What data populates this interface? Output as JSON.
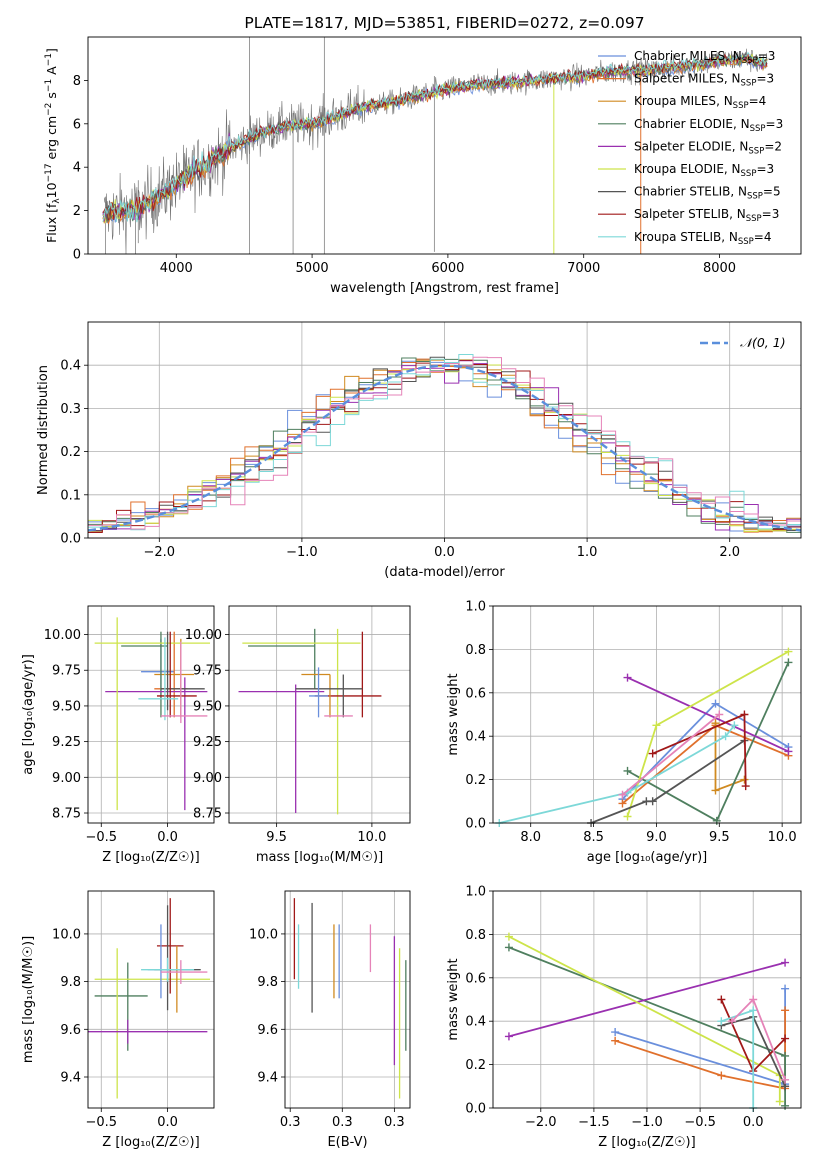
{
  "colors": {
    "chabrier_miles": "#6a8fdc",
    "salpeter_miles": "#e0702c",
    "kroupa_miles": "#d08a20",
    "chabrier_elodie": "#4f7f5f",
    "salpeter_elodie": "#9a30b0",
    "kroupa_elodie": "#cde44a",
    "chabrier_stelib": "#555555",
    "salpeter_stelib": "#a01818",
    "kroupa_stelib": "#7dd8d8",
    "pink": "#e583b8",
    "observed": "#707070",
    "gaussian": "#5a8fdc",
    "grid": "#b0b0b0"
  },
  "chart_data": [
    {
      "id": "spectrum",
      "type": "line",
      "title": "PLATE=1817, MJD=53851, FIBERID=0272, z=0.097",
      "xlabel": "wavelength [Angstrom, rest frame]",
      "xlim": [
        3350,
        8600
      ],
      "ylim": [
        0,
        10
      ],
      "xticks": [
        4000,
        5000,
        6000,
        7000,
        8000
      ],
      "yticks": [
        0,
        2,
        4,
        6,
        8
      ],
      "grid": false,
      "legend_position": "top-right",
      "series": [
        {
          "color_key": "chabrier_miles",
          "name": "Chabrier MILES",
          "nssp": "3"
        },
        {
          "color_key": "salpeter_miles",
          "name": "Salpeter MILES",
          "nssp": "3"
        },
        {
          "color_key": "kroupa_miles",
          "name": "Kroupa MILES",
          "nssp": "4"
        },
        {
          "color_key": "chabrier_elodie",
          "name": "Chabrier ELODIE",
          "nssp": "3"
        },
        {
          "color_key": "salpeter_elodie",
          "name": "Salpeter ELODIE",
          "nssp": "2"
        },
        {
          "color_key": "kroupa_elodie",
          "name": "Kroupa ELODIE",
          "nssp": "3"
        },
        {
          "color_key": "chabrier_stelib",
          "name": "Chabrier STELIB",
          "nssp": "5"
        },
        {
          "color_key": "salpeter_stelib",
          "name": "Salpeter STELIB",
          "nssp": "3"
        },
        {
          "color_key": "kroupa_stelib",
          "name": "Kroupa STELIB",
          "nssp": "4"
        }
      ],
      "model_continuum": {
        "x": [
          3450,
          3600,
          3700,
          3850,
          4000,
          4200,
          4400,
          4600,
          4800,
          5000,
          5200,
          5400,
          5600,
          5800,
          6000,
          6200,
          6500,
          6800,
          7000,
          7200,
          7500,
          7800,
          8000,
          8200,
          8350
        ],
        "y": [
          1.8,
          2.0,
          2.0,
          2.6,
          3.2,
          4.1,
          4.9,
          5.5,
          5.9,
          6.0,
          6.4,
          6.8,
          7.0,
          7.3,
          7.6,
          7.8,
          7.9,
          8.1,
          8.2,
          8.4,
          8.5,
          8.7,
          8.9,
          9.0,
          8.7
        ]
      },
      "observed_noise_spikes": [
        {
          "x": 3480,
          "y1": 0,
          "y2": 2.4
        },
        {
          "x": 3700,
          "y1": 0,
          "y2": 2.8
        },
        {
          "x": 3720,
          "y1": 0.5,
          "y2": 3.4
        },
        {
          "x": 4540,
          "y1": 0,
          "y2": 10
        },
        {
          "x": 4860,
          "y1": 0,
          "y2": 6.5
        },
        {
          "x": 5090,
          "y1": 0,
          "y2": 10
        },
        {
          "x": 5900,
          "y1": 0.1,
          "y2": 8.2
        }
      ],
      "line_features": [
        {
          "x": 6780,
          "y1": 0,
          "y2": 7.8,
          "color_key": "kroupa_elodie"
        },
        {
          "x": 7420,
          "y1": 0,
          "y2": 8.4,
          "color_key": "salpeter_miles"
        }
      ]
    },
    {
      "id": "residuals",
      "type": "histogram",
      "xlabel": "(data-model)/error",
      "ylabel": "Normed distribution",
      "xlim": [
        -2.5,
        2.5
      ],
      "ylim": [
        0,
        0.5
      ],
      "xticks": [
        -2,
        -1,
        0,
        1,
        2
      ],
      "yticks": [
        0.0,
        0.1,
        0.2,
        0.3,
        0.4
      ],
      "grid": true,
      "legend_position": "top-right",
      "legend": [
        "𝒩(0, 1)"
      ],
      "bin_width": 0.1,
      "bin_start": -2.5
    },
    {
      "id": "age-metallicity",
      "type": "errorbar",
      "xlabel": "Z [log₁₀(Z/Z☉)]",
      "ylabel": "age  [log₁₀(age/yr)]",
      "xlim": [
        -0.6,
        0.35
      ],
      "ylim": [
        8.68,
        10.2
      ],
      "xticks": [
        -0.5,
        0.0
      ],
      "yticks": [
        8.75,
        9.0,
        9.25,
        9.5,
        9.75,
        10.0
      ],
      "grid": true,
      "points": [
        {
          "color_key": "chabrier_miles",
          "x": -0.05,
          "xerr": [
            0.15,
            0.1
          ],
          "y": 9.74,
          "yerr": [
            0.2,
            0.23
          ]
        },
        {
          "color_key": "salpeter_miles",
          "x": 0.05,
          "xerr": [
            0.15,
            0.1
          ],
          "y": 9.62,
          "yerr": [
            0.2,
            0.4
          ]
        },
        {
          "color_key": "kroupa_miles",
          "x": 0.1,
          "xerr": [
            0.2,
            0.1
          ],
          "y": 9.72,
          "yerr": [
            0.3,
            0.25
          ]
        },
        {
          "color_key": "chabrier_elodie",
          "x": -0.05,
          "xerr": [
            0.3,
            0.05
          ],
          "y": 9.92,
          "yerr": [
            0.5,
            0.1
          ]
        },
        {
          "color_key": "salpeter_elodie",
          "x": 0.13,
          "xerr": [
            0.6,
            0.17
          ],
          "y": 9.6,
          "yerr": [
            0.83,
            0.1
          ]
        },
        {
          "color_key": "kroupa_elodie",
          "x": -0.38,
          "xerr": [
            0.17,
            0.7
          ],
          "y": 9.94,
          "yerr": [
            1.17,
            0.18
          ]
        },
        {
          "color_key": "chabrier_stelib",
          "x": 0.0,
          "xerr": [
            0.05,
            0.28
          ],
          "y": 9.62,
          "yerr": [
            0.15,
            0.4
          ]
        },
        {
          "color_key": "salpeter_stelib",
          "x": 0.02,
          "xerr": [
            0.1,
            0.2
          ],
          "y": 9.57,
          "yerr": [
            0.15,
            0.45
          ]
        },
        {
          "color_key": "kroupa_stelib",
          "x": -0.02,
          "xerr": [
            0.2,
            0.1
          ],
          "y": 9.55,
          "yerr": [
            0.15,
            0.43
          ]
        },
        {
          "color_key": "pink",
          "x": 0.1,
          "xerr": [
            0.15,
            0.2
          ],
          "y": 9.43,
          "yerr": [
            0.05,
            0.52
          ]
        }
      ]
    },
    {
      "id": "age-mass",
      "type": "errorbar",
      "xlabel": "mass [log₁₀(M/M☉)]",
      "xlim": [
        9.25,
        10.2
      ],
      "ylim": [
        8.68,
        10.2
      ],
      "xticks": [
        9.5,
        10.0
      ],
      "yticks": [
        8.75,
        9.0,
        9.25,
        9.5,
        9.75,
        10.0
      ],
      "grid": true,
      "points": [
        {
          "color_key": "chabrier_elodie",
          "x": 9.7,
          "xerr": [
            0.35,
            0.0
          ],
          "y": 9.92,
          "yerr": [
            0.3,
            0.12
          ]
        },
        {
          "color_key": "kroupa_elodie",
          "x": 9.82,
          "xerr": [
            0.5,
            0.12
          ],
          "y": 9.94,
          "yerr": [
            1.2,
            0.1
          ]
        },
        {
          "color_key": "salpeter_elodie",
          "x": 9.6,
          "xerr": [
            0.3,
            0.15
          ],
          "y": 9.6,
          "yerr": [
            0.85,
            0.05
          ]
        },
        {
          "color_key": "salpeter_stelib",
          "x": 9.95,
          "xerr": [
            0.25,
            0.1
          ],
          "y": 9.57,
          "yerr": [
            0.15,
            0.45
          ]
        },
        {
          "color_key": "kroupa_miles",
          "x": 9.78,
          "xerr": [
            0.15,
            0.0
          ],
          "y": 9.72,
          "yerr": [
            0.3,
            0.0
          ]
        },
        {
          "color_key": "chabrier_stelib",
          "x": 9.85,
          "xerr": [
            0.25,
            0.1
          ],
          "y": 9.62,
          "yerr": [
            0.2,
            0.1
          ]
        },
        {
          "color_key": "pink",
          "x": 9.9,
          "xerr": [
            0.15,
            0.0
          ],
          "y": 9.43,
          "yerr": [
            0.0,
            0.0
          ]
        },
        {
          "color_key": "chabrier_miles",
          "x": 9.72,
          "xerr": [
            0.05,
            0.05
          ],
          "y": 9.57,
          "yerr": [
            0.15,
            0.2
          ]
        }
      ]
    },
    {
      "id": "weight-age",
      "type": "line",
      "xlabel": "age  [log₁₀(age/yr)]",
      "ylabel": "mass weight",
      "xlim": [
        7.7,
        10.15
      ],
      "ylim": [
        0,
        1
      ],
      "xticks": [
        8.0,
        8.5,
        9.0,
        9.5,
        10.0
      ],
      "yticks": [
        0.0,
        0.2,
        0.4,
        0.6,
        0.8,
        1.0
      ],
      "grid": true,
      "series": [
        {
          "color_key": "chabrier_miles",
          "x": [
            8.73,
            9.47,
            10.05
          ],
          "y": [
            0.11,
            0.55,
            0.35
          ]
        },
        {
          "color_key": "salpeter_miles",
          "x": [
            8.73,
            9.47,
            10.05
          ],
          "y": [
            0.09,
            0.45,
            0.31
          ]
        },
        {
          "color_key": "kroupa_miles",
          "x": [
            9.47,
            9.47,
            9.7
          ],
          "y": [
            0.46,
            0.15,
            0.2
          ]
        },
        {
          "color_key": "chabrier_elodie",
          "x": [
            8.77,
            9.48,
            10.05
          ],
          "y": [
            0.24,
            0.01,
            0.74
          ]
        },
        {
          "color_key": "salpeter_elodie",
          "x": [
            8.77,
            10.05
          ],
          "y": [
            0.67,
            0.33
          ]
        },
        {
          "color_key": "kroupa_elodie",
          "x": [
            8.77,
            9.0,
            10.05
          ],
          "y": [
            0.03,
            0.45,
            0.79
          ]
        },
        {
          "color_key": "chabrier_stelib",
          "x": [
            8.48,
            8.92,
            8.97,
            9.7
          ],
          "y": [
            0.0,
            0.1,
            0.1,
            0.38
          ]
        },
        {
          "color_key": "salpeter_stelib",
          "x": [
            8.97,
            9.7,
            9.71
          ],
          "y": [
            0.32,
            0.5,
            0.17
          ]
        },
        {
          "color_key": "kroupa_stelib",
          "x": [
            7.75,
            8.77,
            9.55,
            9.62
          ],
          "y": [
            0.0,
            0.14,
            0.4,
            0.45
          ]
        },
        {
          "color_key": "pink",
          "x": [
            8.73,
            9.5
          ],
          "y": [
            0.13,
            0.5
          ]
        }
      ]
    },
    {
      "id": "mass-metallicity",
      "type": "errorbar",
      "xlabel": "Z [log₁₀(Z/Z☉)]",
      "ylabel": "mass [log₁₀(M/M☉)]",
      "xlim": [
        -0.6,
        0.35
      ],
      "ylim": [
        9.27,
        10.18
      ],
      "xticks": [
        -0.5,
        0.0
      ],
      "yticks": [
        9.4,
        9.6,
        9.8,
        10.0
      ],
      "grid": true,
      "points": [
        {
          "color_key": "chabrier_elodie",
          "x": -0.3,
          "xerr": [
            0.25,
            0.15
          ],
          "y": 9.74,
          "yerr": [
            0.23,
            0.14
          ]
        },
        {
          "color_key": "kroupa_elodie",
          "x": -0.38,
          "xerr": [
            0.17,
            0.7
          ],
          "y": 9.81,
          "yerr": [
            0.5,
            0.13
          ]
        },
        {
          "color_key": "salpeter_elodie",
          "x": -0.3,
          "xerr": [
            0.3,
            0.6
          ],
          "y": 9.59,
          "yerr": [
            0.05,
            0.05
          ]
        },
        {
          "color_key": "salpeter_stelib",
          "x": 0.02,
          "xerr": [
            0.1,
            0.1
          ],
          "y": 9.95,
          "yerr": [
            0.2,
            0.2
          ]
        },
        {
          "color_key": "chabrier_miles",
          "x": -0.05,
          "xerr": [
            0.1,
            0.25
          ],
          "y": 9.85,
          "yerr": [
            0.12,
            0.19
          ]
        },
        {
          "color_key": "kroupa_miles",
          "x": 0.07,
          "xerr": [
            0.05,
            0.05
          ],
          "y": 9.85,
          "yerr": [
            0.18,
            0.1
          ]
        },
        {
          "color_key": "chabrier_stelib",
          "x": 0.0,
          "xerr": [
            0.1,
            0.25
          ],
          "y": 9.85,
          "yerr": [
            0.17,
            0.27
          ]
        },
        {
          "color_key": "kroupa_stelib",
          "x": 0.0,
          "xerr": [
            0.2,
            0.2
          ],
          "y": 9.85,
          "yerr": [
            0.05,
            0.05
          ]
        },
        {
          "color_key": "pink",
          "x": 0.1,
          "xerr": [
            0.15,
            0.2
          ],
          "y": 9.84,
          "yerr": [
            0.05,
            0.05
          ]
        }
      ]
    },
    {
      "id": "mass-ebv",
      "type": "errorbar",
      "xlabel": "E(B-V)",
      "xlim": [
        0.245,
        0.365
      ],
      "ylim": [
        9.27,
        10.18
      ],
      "xticks": [
        0.25,
        0.3,
        0.35
      ],
      "yticks": [
        9.4,
        9.6,
        9.8,
        10.0
      ],
      "grid": true,
      "segments": [
        {
          "color_key": "salpeter_stelib",
          "x": 0.254,
          "y1": 9.81,
          "y2": 10.15
        },
        {
          "color_key": "kroupa_stelib",
          "x": 0.258,
          "y1": 9.77,
          "y2": 10.04
        },
        {
          "color_key": "chabrier_stelib",
          "x": 0.271,
          "y1": 9.67,
          "y2": 10.13
        },
        {
          "color_key": "kroupa_miles",
          "x": 0.292,
          "y1": 9.73,
          "y2": 10.04
        },
        {
          "color_key": "chabrier_miles",
          "x": 0.297,
          "y1": 9.73,
          "y2": 10.04
        },
        {
          "color_key": "pink",
          "x": 0.327,
          "y1": 9.84,
          "y2": 10.04
        },
        {
          "color_key": "salpeter_elodie",
          "x": 0.35,
          "y1": 9.45,
          "y2": 9.99
        },
        {
          "color_key": "kroupa_elodie",
          "x": 0.355,
          "y1": 9.31,
          "y2": 9.94
        },
        {
          "color_key": "chabrier_elodie",
          "x": 0.361,
          "y1": 9.51,
          "y2": 9.89
        }
      ]
    },
    {
      "id": "weight-metallicity",
      "type": "line",
      "xlabel": "Z [log₁₀(Z/Z☉)]",
      "ylabel": "mass weight",
      "xlim": [
        -2.45,
        0.45
      ],
      "ylim": [
        0,
        1
      ],
      "xticks": [
        -2.0,
        -1.5,
        -1.0,
        -0.5,
        0.0
      ],
      "yticks": [
        0.0,
        0.2,
        0.4,
        0.6,
        0.8,
        1.0
      ],
      "grid": true,
      "series": [
        {
          "color_key": "chabrier_miles",
          "x": [
            -1.3,
            0.3,
            0.3
          ],
          "y": [
            0.35,
            0.11,
            0.55
          ]
        },
        {
          "color_key": "salpeter_miles",
          "x": [
            -1.3,
            -0.3,
            0.3,
            0.3
          ],
          "y": [
            0.31,
            0.15,
            0.09,
            0.45
          ]
        },
        {
          "color_key": "chabrier_elodie",
          "x": [
            -2.3,
            0.3,
            0.3
          ],
          "y": [
            0.74,
            0.24,
            0.01
          ]
        },
        {
          "color_key": "salpeter_elodie",
          "x": [
            -2.3,
            0.3
          ],
          "y": [
            0.33,
            0.67
          ]
        },
        {
          "color_key": "kroupa_elodie",
          "x": [
            -2.3,
            0.25,
            0.25
          ],
          "y": [
            0.79,
            0.15,
            0.03
          ]
        },
        {
          "color_key": "chabrier_stelib",
          "x": [
            -0.3,
            0.0,
            0.3,
            0.3
          ],
          "y": [
            0.38,
            0.42,
            0.1,
            0.1
          ]
        },
        {
          "color_key": "salpeter_stelib",
          "x": [
            -0.3,
            0.0,
            0.3
          ],
          "y": [
            0.5,
            0.17,
            0.32
          ]
        },
        {
          "color_key": "kroupa_stelib",
          "x": [
            -0.3,
            0.0,
            0.0
          ],
          "y": [
            0.4,
            0.45,
            0.0
          ]
        },
        {
          "color_key": "pink",
          "x": [
            -0.2,
            0.0,
            0.3
          ],
          "y": [
            0.4,
            0.5,
            0.13
          ]
        }
      ]
    }
  ]
}
